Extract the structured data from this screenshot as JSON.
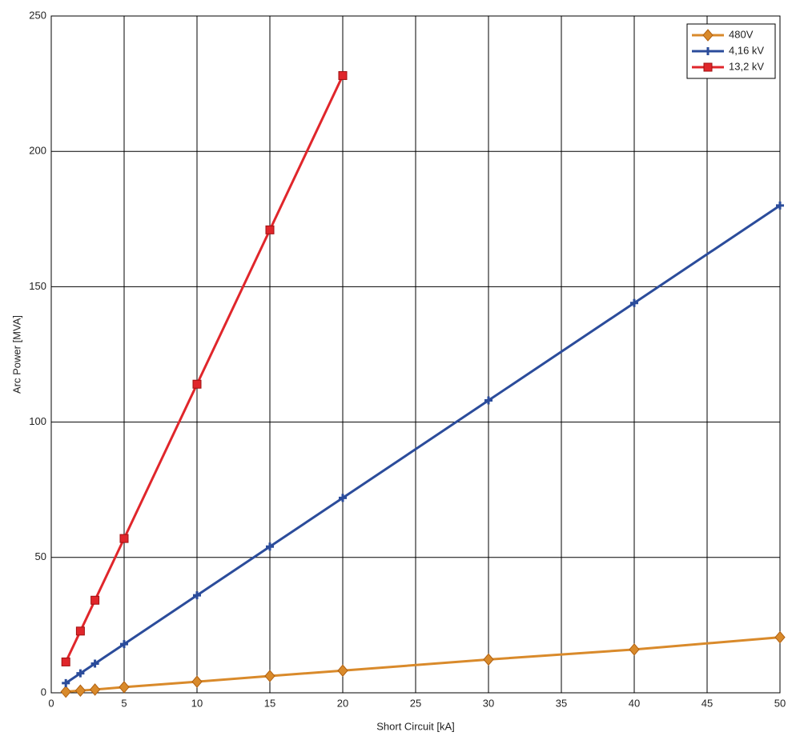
{
  "chart_data": {
    "type": "line",
    "xlabel": "Short Circuit [kA]",
    "ylabel": "Arc Power [MVA]",
    "series": [
      {
        "name": "480V",
        "color": "#d98a2b",
        "marker": "diamond",
        "x": [
          1,
          2,
          3,
          5,
          10,
          15,
          20,
          30,
          40,
          50
        ],
        "values": [
          0.4,
          0.8,
          1.2,
          2.1,
          4.1,
          6.2,
          8.2,
          12.3,
          16.0,
          20.5
        ]
      },
      {
        "name": "4,16 kV",
        "color": "#2b4c9b",
        "marker": "plus",
        "x": [
          1,
          2,
          3,
          5,
          10,
          15,
          20,
          30,
          40,
          50
        ],
        "values": [
          3.6,
          7.2,
          10.8,
          18,
          36,
          54,
          72,
          108,
          144,
          180
        ]
      },
      {
        "name": "13,2 kV",
        "color": "#e0262b",
        "marker": "square",
        "x": [
          1,
          2,
          3,
          5,
          10,
          15,
          20
        ],
        "values": [
          11.4,
          22.8,
          34.2,
          57,
          114,
          171,
          228
        ]
      }
    ],
    "xlim": [
      0,
      50
    ],
    "xticks": [
      0,
      5,
      10,
      15,
      20,
      25,
      30,
      35,
      40,
      45,
      50
    ],
    "ylim": [
      0,
      250
    ],
    "yticks": [
      0,
      50,
      100,
      150,
      200,
      250
    ],
    "grid": true,
    "legend": "upper right"
  }
}
